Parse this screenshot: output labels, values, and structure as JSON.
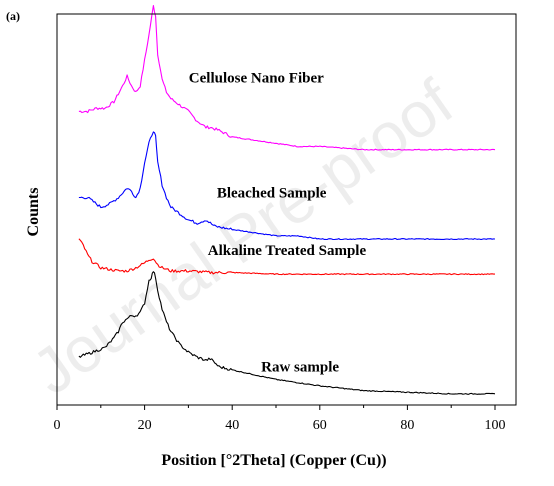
{
  "panel_label": "(a)",
  "watermark": "Journal Pre-proof",
  "chart_data": {
    "type": "line",
    "title": "",
    "xlabel": "Position [°2Theta] (Copper (Cu))",
    "ylabel": "Counts",
    "xlim": [
      0,
      100
    ],
    "ylim": [
      0,
      12
    ],
    "xticks": [
      0,
      20,
      40,
      60,
      80,
      100
    ],
    "yticks_visible": false,
    "grid": false,
    "legend": "inline labels",
    "series": [
      {
        "name": "Cellulose Nano Fiber",
        "color": "#ff00ff",
        "x": [
          5,
          7,
          9,
          11,
          13,
          15,
          16,
          17,
          18,
          19,
          20,
          21,
          22,
          22.5,
          23,
          24,
          25,
          26,
          28,
          30,
          32,
          34,
          35,
          37,
          40,
          45,
          50,
          55,
          60,
          70,
          80,
          90,
          100
        ],
        "y": [
          9.2,
          9.2,
          9.3,
          9.3,
          9.5,
          10.0,
          10.3,
          10.0,
          9.8,
          10.0,
          10.8,
          11.6,
          12.5,
          12.2,
          11.0,
          10.2,
          9.8,
          9.6,
          9.4,
          9.2,
          8.9,
          8.7,
          8.7,
          8.6,
          8.4,
          8.3,
          8.2,
          8.1,
          8.1,
          8.0,
          8.0,
          8.0,
          8.0
        ]
      },
      {
        "name": "Bleached Sample",
        "color": "#0000ff",
        "x": [
          5,
          7,
          9,
          10,
          12,
          14,
          16,
          17,
          18,
          19,
          20,
          21,
          22,
          22.5,
          23,
          24,
          25,
          26,
          28,
          30,
          32,
          34,
          36,
          40,
          45,
          50,
          55,
          60,
          70,
          80,
          90,
          100
        ],
        "y": [
          6.5,
          6.5,
          6.3,
          6.2,
          6.3,
          6.5,
          6.8,
          6.7,
          6.5,
          6.8,
          7.6,
          8.2,
          8.6,
          8.4,
          7.6,
          6.9,
          6.5,
          6.2,
          6.0,
          5.8,
          5.7,
          5.8,
          5.6,
          5.5,
          5.4,
          5.3,
          5.3,
          5.2,
          5.2,
          5.2,
          5.2,
          5.2
        ]
      },
      {
        "name": "Alkaline Treated Sample",
        "color": "#ff0000",
        "x": [
          5,
          6,
          7,
          8,
          9,
          10,
          12,
          14,
          16,
          18,
          20,
          21,
          22,
          23,
          24,
          26,
          28,
          30,
          35,
          40,
          50,
          60,
          70,
          80,
          90,
          100
        ],
        "y": [
          5.2,
          5.0,
          4.7,
          4.5,
          4.4,
          4.3,
          4.25,
          4.2,
          4.2,
          4.3,
          4.45,
          4.55,
          4.6,
          4.4,
          4.3,
          4.2,
          4.2,
          4.2,
          4.15,
          4.15,
          4.1,
          4.1,
          4.1,
          4.1,
          4.1,
          4.1
        ]
      },
      {
        "name": "Raw sample",
        "color": "#000000",
        "x": [
          5,
          7,
          9,
          11,
          13,
          14,
          15,
          16,
          17,
          18,
          19,
          20,
          21,
          21.5,
          22,
          22.5,
          23,
          24,
          25,
          26,
          27,
          28,
          30,
          32,
          34,
          35,
          37,
          40,
          45,
          50,
          55,
          60,
          70,
          80,
          90,
          100
        ],
        "y": [
          1.5,
          1.6,
          1.7,
          1.8,
          2.1,
          2.3,
          2.6,
          2.7,
          2.8,
          2.8,
          2.9,
          3.2,
          3.9,
          4.0,
          4.2,
          4.0,
          3.6,
          3.0,
          2.6,
          2.3,
          2.1,
          1.9,
          1.65,
          1.5,
          1.4,
          1.45,
          1.2,
          1.1,
          0.95,
          0.8,
          0.7,
          0.6,
          0.45,
          0.4,
          0.35,
          0.35
        ]
      }
    ],
    "annotations": [
      {
        "text": "Cellulose Nano Fiber",
        "x": 45.5,
        "y": 10.1
      },
      {
        "text": "Bleached Sample",
        "x": 49.0,
        "y": 6.5
      },
      {
        "text": "Alkaline Treated Sample",
        "x": 52.5,
        "y": 4.7
      },
      {
        "text": "Raw sample",
        "x": 55.5,
        "y": 1.05
      }
    ]
  }
}
